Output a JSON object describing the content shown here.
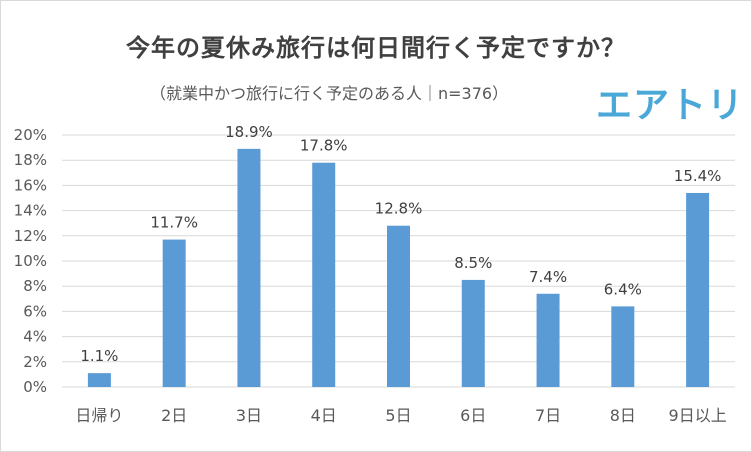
{
  "chart_data": {
    "type": "bar",
    "title": "今年の夏休み旅行は何日間行く予定ですか？",
    "subtitle": "（就業中かつ旅行に行く予定のある人｜n=376）",
    "brand": "エアトリ",
    "categories": [
      "日帰り",
      "2日",
      "3日",
      "4日",
      "5日",
      "6日",
      "7日",
      "8日",
      "9日以上"
    ],
    "values": [
      1.1,
      11.7,
      18.9,
      17.8,
      12.8,
      8.5,
      7.4,
      6.4,
      15.4
    ],
    "data_labels": [
      "1.1%",
      "11.7%",
      "18.9%",
      "17.8%",
      "12.8%",
      "8.5%",
      "7.4%",
      "6.4%",
      "15.4%"
    ],
    "yticks": [
      "0%",
      "2%",
      "4%",
      "6%",
      "8%",
      "10%",
      "12%",
      "14%",
      "16%",
      "18%",
      "20%"
    ],
    "ylim": [
      0,
      20
    ],
    "xlabel": "",
    "ylabel": "",
    "grid": true,
    "bar_color": "#5b9bd5",
    "grid_color": "#d9d9d9"
  }
}
